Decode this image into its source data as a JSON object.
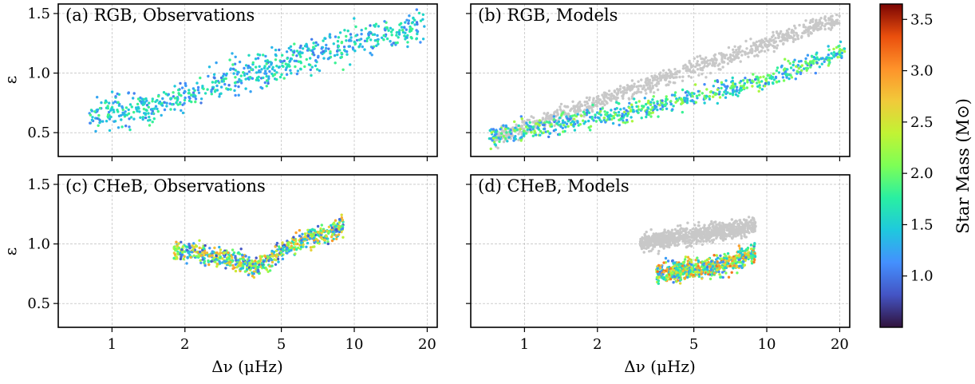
{
  "chart_data": {
    "type": "scatter",
    "layout": "2x2 panels, shared log-scale x axis, shared colorbar",
    "x_scale": "log",
    "xlim": [
      0.6,
      22
    ],
    "ylim": [
      0.3,
      1.58
    ],
    "xticks": [
      1,
      2,
      5,
      10,
      20
    ],
    "xtick_labels": [
      "1",
      "2",
      "5",
      "10",
      "20"
    ],
    "yticks": [
      0.5,
      1.0,
      1.5
    ],
    "ytick_labels": [
      "0.5",
      "1.0",
      "1.5"
    ],
    "xlabel": "Δν (μHz)",
    "ylabel": "ε",
    "grid": true,
    "colorbar": {
      "label": "Star Mass (M⊙)",
      "range": [
        0.5,
        3.65
      ],
      "ticks": [
        1.0,
        1.5,
        2.0,
        2.5,
        3.0,
        3.5
      ],
      "tick_labels": [
        "1.0",
        "1.5",
        "2.0",
        "2.5",
        "3.0",
        "3.5"
      ],
      "colormap": "turbo"
    },
    "panels": [
      {
        "title": "(a) RGB, Observations",
        "series": [
          {
            "kind": "observations",
            "relation": "linear in log Δν",
            "x": [
              0.8,
              1.0,
              1.5,
              2.0,
              3.0,
              5.0,
              8.0,
              12.0,
              19.5
            ],
            "y": [
              0.65,
              0.68,
              0.72,
              0.8,
              0.95,
              1.08,
              1.2,
              1.3,
              1.38
            ],
            "spread": 0.12,
            "mass_typical": [
              1.0,
              1.9
            ]
          }
        ]
      },
      {
        "title": "(b) RGB, Models",
        "series": [
          {
            "kind": "reference",
            "color": "#c8c8c8",
            "x": [
              0.75,
              1.0,
              2.0,
              4.0,
              8.0,
              15.0,
              20.0
            ],
            "y": [
              0.45,
              0.55,
              0.75,
              0.98,
              1.18,
              1.38,
              1.45
            ]
          },
          {
            "kind": "models",
            "relation": "linear in log Δν",
            "x": [
              0.7,
              1.0,
              2.0,
              4.0,
              8.0,
              14.0,
              21.0
            ],
            "y": [
              0.48,
              0.52,
              0.63,
              0.75,
              0.9,
              1.05,
              1.2
            ],
            "mass_typical": [
              1.0,
              2.3
            ]
          }
        ]
      },
      {
        "title": "(c) CHeB, Observations",
        "series": [
          {
            "kind": "observations",
            "x": [
              1.8,
              2.6,
              3.5,
              4.0,
              5.0,
              6.5,
              8.0,
              9.0
            ],
            "y": [
              0.95,
              0.9,
              0.85,
              0.8,
              0.95,
              1.05,
              1.1,
              1.15
            ],
            "mass_typical": [
              0.8,
              3.0
            ]
          }
        ]
      },
      {
        "title": "(d) CHeB, Models",
        "series": [
          {
            "kind": "reference",
            "color": "#c8c8c8",
            "x": [
              3.0,
              4.0,
              6.0,
              9.0
            ],
            "y": [
              1.0,
              1.05,
              1.1,
              1.15
            ]
          },
          {
            "kind": "models",
            "x": [
              3.5,
              4.5,
              6.0,
              9.0
            ],
            "y": [
              0.75,
              0.78,
              0.8,
              0.92
            ],
            "mass_typical": [
              1.0,
              3.2
            ]
          }
        ]
      }
    ]
  }
}
